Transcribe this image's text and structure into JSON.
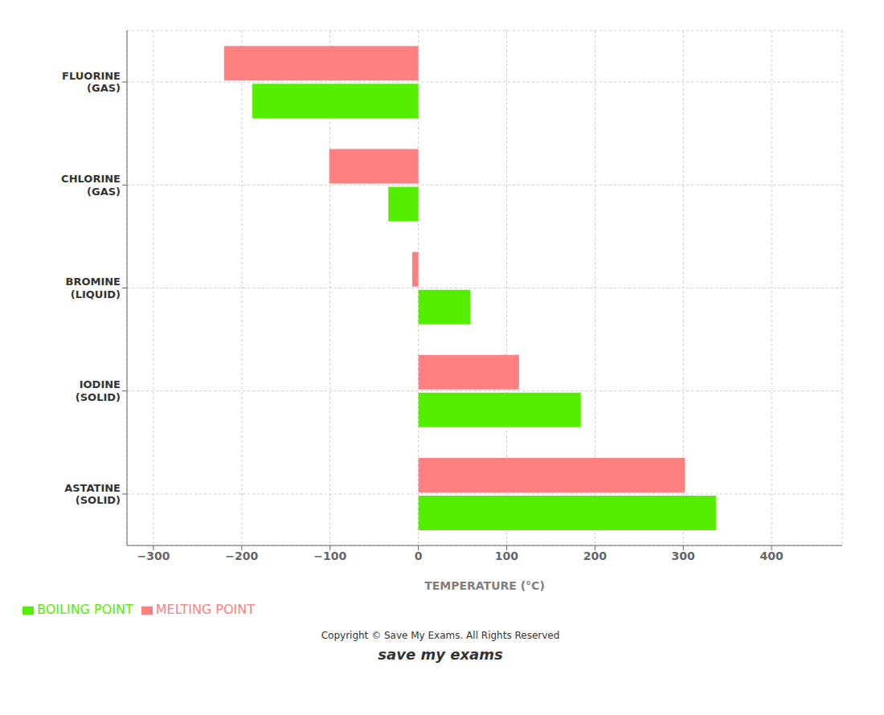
{
  "chart_data": {
    "type": "bar",
    "orientation": "horizontal",
    "categories": [
      "FLUORINE\n(GAS)",
      "CHLORINE\n(GAS)",
      "BROMINE\n(LIQUID)",
      "IODINE\n(SOLID)",
      "ASTATINE\n(SOLID)"
    ],
    "series": [
      {
        "name": "MELTING  POINT",
        "color": "#FF8080",
        "values": [
          -220,
          -101,
          -7,
          114,
          302
        ]
      },
      {
        "name": "BOILING  POINT",
        "color": "#55EE00",
        "values": [
          -188,
          -34,
          59,
          184,
          337
        ]
      }
    ],
    "xlabel": "TEMPERATURE (°C)",
    "xlim": [
      -330,
      480
    ],
    "xticks": [
      {
        "value": -300,
        "label": "−300"
      },
      {
        "value": -200,
        "label": "−200"
      },
      {
        "value": -100,
        "label": "−100"
      },
      0,
      100,
      200,
      300,
      400
    ],
    "grid": true,
    "legend": "lower left",
    "annotations": [
      "Copyright © Save My Exams. All Rights Reserved",
      "save my exams"
    ]
  }
}
